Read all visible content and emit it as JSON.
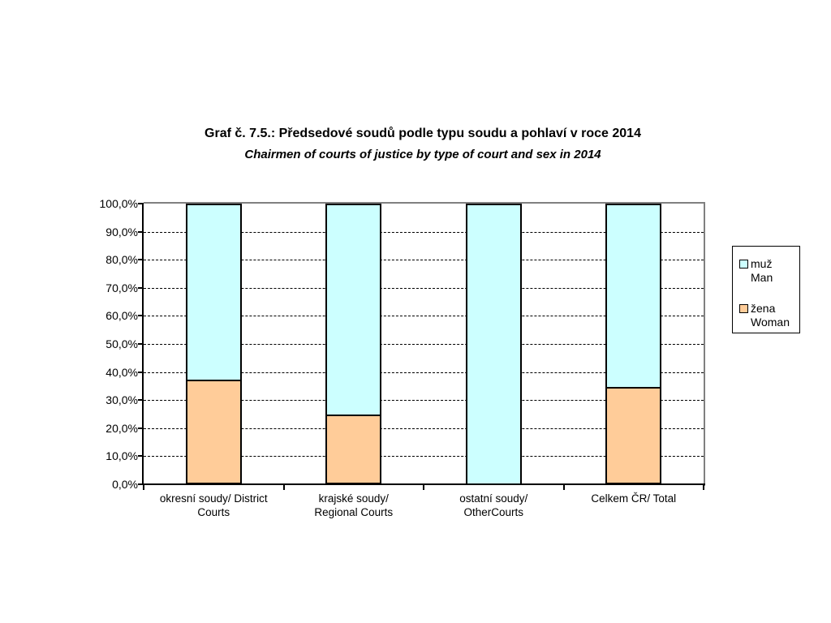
{
  "chart_data": {
    "type": "bar",
    "stacked": true,
    "percent_stacked": true,
    "title": "Graf č. 7.5.: Předsedové soudů podle typu soudu a pohlaví v roce 2014",
    "subtitle": "Chairmen of courts of justice by type of court and sex in 2014",
    "categories": [
      "okresní soudy/ District Courts",
      "krajské soudy/ Regional Courts",
      "ostatní soudy/ OtherCourts",
      "Celkem ČR/ Total"
    ],
    "category_lines": [
      [
        "okresní soudy/ District",
        "Courts"
      ],
      [
        "krajské soudy/",
        "Regional Courts"
      ],
      [
        "ostatní soudy/",
        "OtherCourts"
      ],
      [
        "Celkem ČR/ Total"
      ]
    ],
    "category_ids": [
      "okresni-soudy",
      "krajske-soudy",
      "ostatni-soudy",
      "celkem-cr"
    ],
    "series": [
      {
        "id": "muz-man",
        "name": "muž Man",
        "legend_lines": [
          "muž",
          "Man"
        ],
        "color": "#CCFFFF",
        "stack_position": "top",
        "values": [
          62.8,
          75.0,
          100.0,
          65.3
        ]
      },
      {
        "id": "zena-woman",
        "name": "žena Woman",
        "legend_lines": [
          "žena",
          "Woman"
        ],
        "color": "#FFCC99",
        "stack_position": "bottom",
        "values": [
          37.2,
          25.0,
          0.0,
          34.7
        ]
      }
    ],
    "xlabel": "",
    "ylabel": "",
    "ylim": [
      0,
      100
    ],
    "ytick_labels": [
      "0,0%",
      "10,0%",
      "20,0%",
      "30,0%",
      "40,0%",
      "50,0%",
      "60,0%",
      "70,0%",
      "80,0%",
      "90,0%",
      "100,0%"
    ],
    "grid": "horizontal-dashed",
    "legend_position": "right"
  },
  "colors": {
    "man_fill": "#CCFFFF",
    "woman_fill": "#FFCC99",
    "bar_border": "#000000",
    "plot_border": "#808080",
    "axis": "#000000",
    "background": "#FFFFFF"
  }
}
